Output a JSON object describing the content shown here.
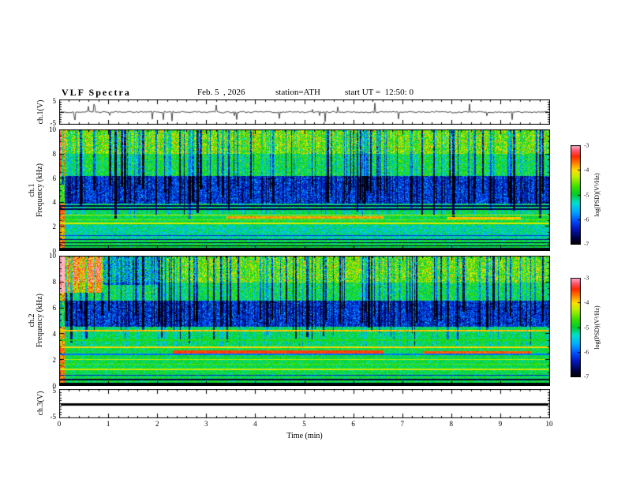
{
  "header": {
    "title": "VLF Spectra",
    "date": "Feb. 5  , 2026",
    "station": "station=ATH",
    "start_ut": "start UT =  12:50: 0"
  },
  "axes": {
    "time_label": "Time (min)",
    "time_ticks": [
      "0",
      "1",
      "2",
      "3",
      "4",
      "5",
      "6",
      "7",
      "8",
      "9",
      "10"
    ],
    "freq_ticks": [
      "0",
      "2",
      "4",
      "6",
      "8",
      "10"
    ],
    "volt_ticks": [
      "5",
      "-5"
    ],
    "time_range_min": [
      0,
      10
    ],
    "freq_range_khz": [
      0,
      10
    ],
    "volt_range": [
      -5,
      5
    ]
  },
  "panels": {
    "wave1": {
      "label": "ch.1(V)"
    },
    "spec1": {
      "label1": "ch.1",
      "label2": "Frequency (kHz)"
    },
    "spec2": {
      "label1": "ch.2",
      "label2": "Frequency (kHz)"
    },
    "wave3": {
      "label": "ch.3(V)"
    }
  },
  "colorbar": {
    "label": "log(PSD)(V²/Hz)",
    "ticks": [
      "-3",
      "-4",
      "-5",
      "-6",
      "-7"
    ],
    "range": [
      -7,
      -3
    ]
  },
  "colormap": {
    "stops": [
      [
        0.0,
        "#000000"
      ],
      [
        0.06,
        "#000040"
      ],
      [
        0.16,
        "#0018c0"
      ],
      [
        0.24,
        "#0050ff"
      ],
      [
        0.33,
        "#00aaff"
      ],
      [
        0.42,
        "#00e0d0"
      ],
      [
        0.5,
        "#00cc30"
      ],
      [
        0.58,
        "#38e000"
      ],
      [
        0.68,
        "#b8f000"
      ],
      [
        0.75,
        "#ffe000"
      ],
      [
        0.82,
        "#ff8000"
      ],
      [
        0.89,
        "#ff2800"
      ],
      [
        0.95,
        "#ff5878"
      ],
      [
        1.0,
        "#ffb8c8"
      ]
    ]
  },
  "chart_data": [
    {
      "type": "line",
      "name": "ch1-waveform",
      "ylabel": "ch.1(V)",
      "xlabel": "Time (min)",
      "xlim": [
        0,
        10
      ],
      "ylim": [
        -5,
        5
      ],
      "description": "Broadband noise centered on 0 V with frequent impulsive spikes reaching roughly ±5 V across the full 10 minutes",
      "model": {
        "seed": 7,
        "amp": 0.55,
        "spike_prob": 0.04,
        "spike_amp": 3.2
      }
    },
    {
      "type": "heatmap",
      "name": "ch1-spectrogram",
      "ylabel": "ch.1 Frequency (kHz)",
      "xlim": [
        0,
        10
      ],
      "ylim": [
        0,
        10
      ],
      "zlim": [
        -7,
        -3
      ],
      "zlabel": "log(PSD)(V²/Hz)",
      "description": "Green background near -5 with dense dark-blue vertical sferic streaks above ~3 kHz, a broad low-power dark-blue band at about 3.9-6.2 kHz, black horizontal interference lines below 1.3 kHz, yellow harmonic lines near 2.3-3 kHz, a pair of dark lines near 3.5 kHz, and yellow/red speckle above 8 kHz",
      "model": {
        "seed": 42,
        "base": -5.0,
        "noise": 0.7,
        "streak_prob": 0.16,
        "streak_depth": [
          1.0,
          2.3
        ],
        "streak_fmin": 2.6,
        "streak_fmax": 5.5,
        "bands": [
          {
            "f0": 3.9,
            "f1": 6.2,
            "delta": -1.15,
            "noise": 0.8
          },
          {
            "f0": 8.0,
            "f1": 10.0,
            "delta": 0.55,
            "noise": 1.2
          },
          {
            "f0": 1.0,
            "f1": 2.2,
            "delta": -0.25,
            "noise": 0.6
          },
          {
            "f0": 6.2,
            "f1": 8.0,
            "delta": 0.1,
            "noise": 0.6
          }
        ],
        "lines": [
          {
            "f": 0.15,
            "v": -7.0,
            "hw": 0.13
          },
          {
            "f": 0.45,
            "v": -6.9,
            "hw": 0.05
          },
          {
            "f": 0.7,
            "v": -6.8,
            "hw": 0.05
          },
          {
            "f": 0.95,
            "v": -6.6,
            "hw": 0.04
          },
          {
            "f": 1.3,
            "v": -6.2,
            "hw": 0.04
          },
          {
            "f": 2.3,
            "v": -4.15,
            "hw": 0.05
          },
          {
            "f": 2.6,
            "v": -4.5,
            "hw": 0.04
          },
          {
            "f": 3.0,
            "v": -4.25,
            "hw": 0.05
          },
          {
            "f": 3.45,
            "v": -6.7,
            "hw": 0.06
          },
          {
            "f": 3.75,
            "v": -6.7,
            "hw": 0.06
          }
        ],
        "segments": [
          {
            "f": 2.78,
            "x0": 3.4,
            "x1": 6.6,
            "v": -3.8,
            "hw": 0.09
          },
          {
            "f": 2.72,
            "x0": 7.9,
            "x1": 9.4,
            "v": -3.9,
            "hw": 0.08
          }
        ],
        "patches": [
          {
            "x0": 0.0,
            "x1": 0.1,
            "f0": 0,
            "f1": 10,
            "delta": 1.4,
            "noise": 0.5
          }
        ]
      }
    },
    {
      "type": "heatmap",
      "name": "ch2-spectrogram",
      "ylabel": "ch.2 Frequency (kHz)",
      "xlim": [
        0,
        10
      ],
      "ylim": [
        0,
        10
      ],
      "zlim": [
        -7,
        -3
      ],
      "zlabel": "log(PSD)(V²/Hz)",
      "description": "Similar to ch.1 but with the low-power dark-blue band at about 4.6-6.6 kHz, strong yellow/orange horizontal harmonic lines between 1 and 4.5 kHz, red/grey horizontal bars near 2.6 kHz in the middle of the record, a bright green/yellow patch at the upper-left (first minute, above 7 kHz) and black interference lines below 1 kHz",
      "model": {
        "seed": 1337,
        "base": -5.0,
        "noise": 0.7,
        "streak_prob": 0.17,
        "streak_depth": [
          1.0,
          2.3
        ],
        "streak_fmin": 3.0,
        "streak_fmax": 6.0,
        "bands": [
          {
            "f0": 4.6,
            "f1": 6.6,
            "delta": -1.15,
            "noise": 0.8
          },
          {
            "f0": 8.0,
            "f1": 10.0,
            "delta": 0.5,
            "noise": 1.2
          },
          {
            "f0": 6.6,
            "f1": 8.0,
            "delta": 0.05,
            "noise": 0.6
          }
        ],
        "lines": [
          {
            "f": 0.15,
            "v": -7.0,
            "hw": 0.1
          },
          {
            "f": 0.5,
            "v": -6.8,
            "hw": 0.06
          },
          {
            "f": 0.85,
            "v": -6.3,
            "hw": 0.05
          },
          {
            "f": 1.3,
            "v": -4.2,
            "hw": 0.06
          },
          {
            "f": 1.7,
            "v": -4.6,
            "hw": 0.04
          },
          {
            "f": 2.05,
            "v": -4.3,
            "hw": 0.05
          },
          {
            "f": 2.45,
            "v": -5.9,
            "hw": 0.04
          },
          {
            "f": 3.0,
            "v": -4.0,
            "hw": 0.07
          },
          {
            "f": 3.55,
            "v": -4.8,
            "hw": 0.04
          },
          {
            "f": 4.3,
            "v": -3.9,
            "hw": 0.06
          }
        ],
        "segments": [
          {
            "f": 2.62,
            "x0": 2.3,
            "x1": 6.6,
            "v": -3.5,
            "hw": 0.11
          },
          {
            "f": 2.58,
            "x0": 7.4,
            "x1": 9.6,
            "v": -3.6,
            "hw": 0.09
          }
        ],
        "patches": [
          {
            "x0": 0.0,
            "x1": 0.9,
            "f0": 7.2,
            "f1": 10,
            "delta": 1.2,
            "noise": 0.8
          },
          {
            "x0": 0.9,
            "x1": 2.0,
            "f0": 7.8,
            "f1": 10,
            "delta": -0.9,
            "noise": 0.6
          },
          {
            "x0": 0.0,
            "x1": 0.1,
            "f0": 0,
            "f1": 10,
            "delta": 1.4,
            "noise": 0.5
          }
        ]
      }
    },
    {
      "type": "line",
      "name": "ch3-waveform",
      "ylabel": "ch.3(V)",
      "xlim": [
        0,
        10
      ],
      "ylim": [
        -5,
        5
      ],
      "values_note": "constant 0 V for the whole record (thick flat black line)",
      "model": {
        "thickness": 3
      }
    }
  ]
}
